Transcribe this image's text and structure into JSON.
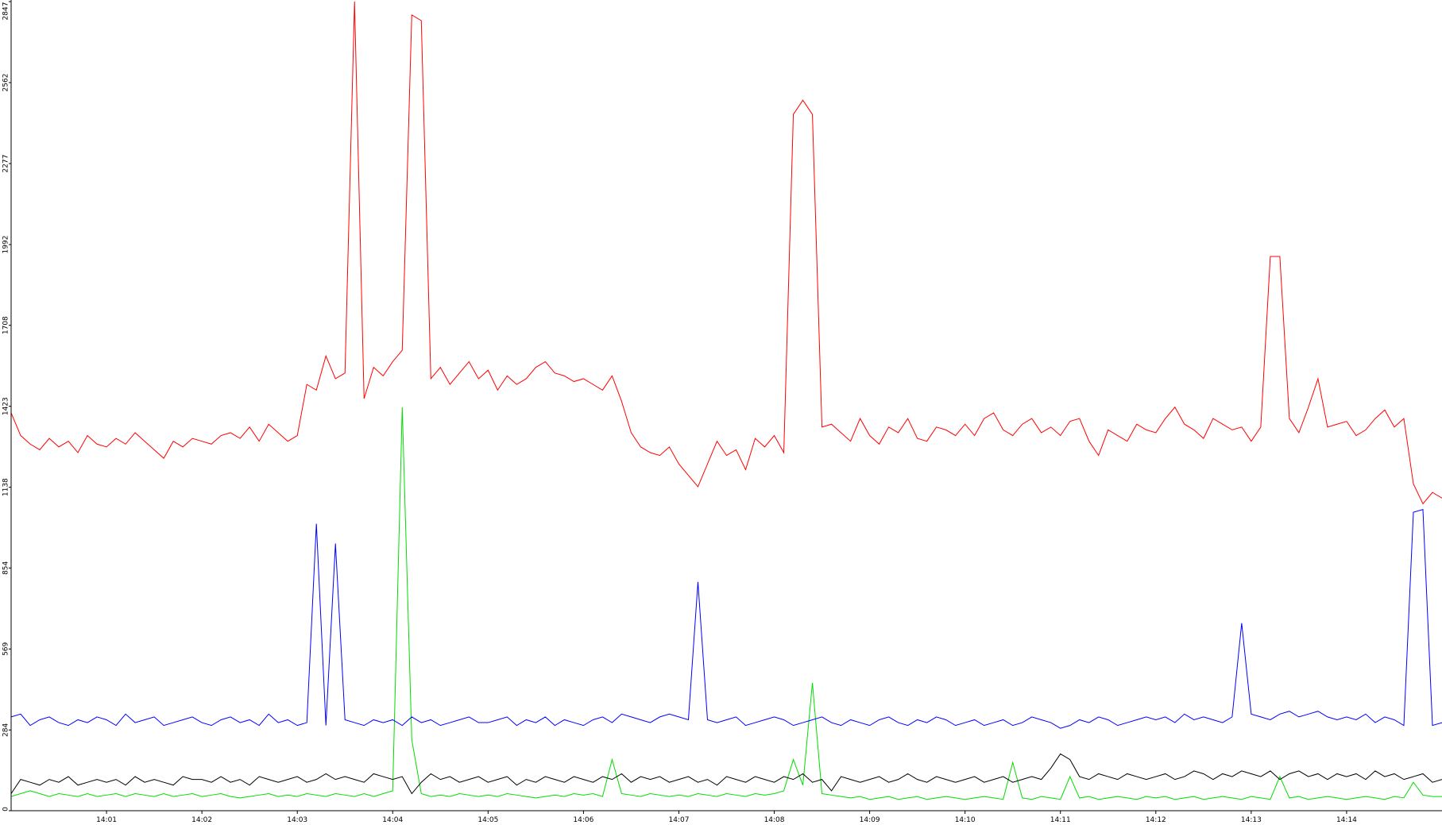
{
  "chart_data": {
    "type": "line",
    "x": [
      0,
      0.1,
      0.2,
      0.3,
      0.4,
      0.5,
      0.6,
      0.7,
      0.8,
      0.9,
      1,
      1.1,
      1.2,
      1.3,
      1.4,
      1.5,
      1.6,
      1.7,
      1.8,
      1.9,
      2,
      2.1,
      2.2,
      2.3,
      2.4,
      2.5,
      2.6,
      2.7,
      2.8,
      2.9,
      3,
      3.1,
      3.2,
      3.3,
      3.4,
      3.5,
      3.6,
      3.7,
      3.8,
      3.9,
      4,
      4.1,
      4.2,
      4.3,
      4.4,
      4.5,
      4.6,
      4.7,
      4.8,
      4.9,
      5,
      5.1,
      5.2,
      5.3,
      5.4,
      5.5,
      5.6,
      5.7,
      5.8,
      5.9,
      6,
      6.1,
      6.2,
      6.3,
      6.4,
      6.5,
      6.6,
      6.7,
      6.8,
      6.9,
      7,
      7.1,
      7.2,
      7.3,
      7.4,
      7.5,
      7.6,
      7.7,
      7.8,
      7.9,
      8,
      8.1,
      8.2,
      8.3,
      8.4,
      8.5,
      8.6,
      8.7,
      8.8,
      8.9,
      9,
      9.1,
      9.2,
      9.3,
      9.4,
      9.5,
      9.6,
      9.7,
      9.8,
      9.9,
      10,
      10.1,
      10.2,
      10.3,
      10.4,
      10.5,
      10.6,
      10.7,
      10.8,
      10.9,
      11,
      11.1,
      11.2,
      11.3,
      11.4,
      11.5,
      11.6,
      11.7,
      11.8,
      11.9,
      12,
      12.1,
      12.2,
      12.3,
      12.4,
      12.5,
      12.6,
      12.7,
      12.8,
      12.9,
      13,
      13.1,
      13.2,
      13.3,
      13.4,
      13.5,
      13.6,
      13.7,
      13.8,
      13.9,
      14,
      14.1,
      14.2,
      14.3,
      14.4,
      14.5,
      14.6,
      14.7,
      14.8,
      14.9,
      15
    ],
    "series": [
      {
        "color": "#ff0000",
        "values": [
          1400,
          1320,
          1290,
          1270,
          1310,
          1280,
          1300,
          1260,
          1320,
          1290,
          1280,
          1310,
          1290,
          1330,
          1300,
          1270,
          1240,
          1300,
          1280,
          1310,
          1300,
          1290,
          1320,
          1330,
          1310,
          1350,
          1300,
          1360,
          1330,
          1300,
          1320,
          1500,
          1480,
          1600,
          1520,
          1540,
          2847,
          1450,
          1560,
          1530,
          1580,
          1620,
          2800,
          2780,
          1520,
          1560,
          1500,
          1540,
          1580,
          1520,
          1550,
          1480,
          1530,
          1500,
          1520,
          1560,
          1580,
          1540,
          1530,
          1510,
          1520,
          1500,
          1480,
          1530,
          1440,
          1330,
          1280,
          1260,
          1250,
          1280,
          1220,
          1180,
          1140,
          1220,
          1300,
          1250,
          1270,
          1200,
          1310,
          1280,
          1320,
          1260,
          2450,
          2500,
          2450,
          1350,
          1360,
          1330,
          1300,
          1380,
          1320,
          1290,
          1350,
          1330,
          1380,
          1310,
          1300,
          1350,
          1340,
          1320,
          1360,
          1320,
          1380,
          1400,
          1340,
          1320,
          1360,
          1380,
          1330,
          1350,
          1320,
          1370,
          1380,
          1300,
          1250,
          1340,
          1320,
          1300,
          1360,
          1340,
          1330,
          1380,
          1420,
          1360,
          1340,
          1310,
          1380,
          1360,
          1340,
          1350,
          1300,
          1350,
          1950,
          1950,
          1380,
          1330,
          1420,
          1520,
          1350,
          1360,
          1370,
          1320,
          1340,
          1380,
          1410,
          1350,
          1380,
          1150,
          1080,
          1120,
          1100
        ]
      },
      {
        "color": "#0000ff",
        "values": [
          330,
          340,
          300,
          320,
          330,
          310,
          300,
          320,
          310,
          330,
          320,
          300,
          340,
          310,
          320,
          330,
          300,
          310,
          320,
          330,
          310,
          300,
          320,
          330,
          310,
          320,
          300,
          340,
          310,
          320,
          300,
          310,
          1010,
          300,
          940,
          320,
          310,
          300,
          320,
          310,
          320,
          300,
          330,
          310,
          320,
          300,
          310,
          320,
          330,
          310,
          310,
          320,
          330,
          300,
          320,
          310,
          330,
          300,
          320,
          310,
          300,
          320,
          330,
          310,
          340,
          330,
          320,
          310,
          330,
          340,
          330,
          320,
          805,
          320,
          310,
          320,
          330,
          300,
          310,
          320,
          330,
          320,
          300,
          310,
          320,
          330,
          310,
          300,
          320,
          310,
          300,
          320,
          330,
          310,
          300,
          320,
          310,
          330,
          320,
          300,
          310,
          320,
          300,
          310,
          320,
          300,
          310,
          330,
          320,
          310,
          290,
          300,
          320,
          310,
          330,
          320,
          300,
          310,
          320,
          330,
          320,
          330,
          310,
          340,
          320,
          330,
          320,
          310,
          330,
          660,
          340,
          330,
          320,
          340,
          350,
          330,
          340,
          350,
          330,
          320,
          330,
          320,
          340,
          310,
          330,
          320,
          300,
          1050,
          1060,
          300,
          310
        ]
      },
      {
        "color": "#000000",
        "values": [
          60,
          110,
          100,
          90,
          110,
          100,
          120,
          90,
          100,
          110,
          100,
          110,
          90,
          120,
          100,
          110,
          100,
          90,
          120,
          110,
          110,
          100,
          120,
          100,
          110,
          90,
          120,
          110,
          100,
          110,
          120,
          100,
          110,
          130,
          110,
          120,
          110,
          100,
          130,
          120,
          110,
          120,
          60,
          100,
          130,
          110,
          120,
          100,
          110,
          120,
          100,
          110,
          120,
          90,
          110,
          100,
          120,
          110,
          100,
          120,
          110,
          100,
          120,
          110,
          130,
          100,
          120,
          110,
          120,
          100,
          110,
          120,
          100,
          110,
          90,
          120,
          110,
          100,
          120,
          110,
          100,
          120,
          110,
          130,
          100,
          110,
          70,
          120,
          110,
          100,
          110,
          120,
          100,
          110,
          130,
          110,
          100,
          120,
          110,
          100,
          110,
          120,
          100,
          110,
          120,
          100,
          110,
          120,
          110,
          150,
          200,
          180,
          120,
          110,
          130,
          120,
          110,
          130,
          120,
          110,
          120,
          130,
          110,
          120,
          140,
          130,
          110,
          130,
          120,
          140,
          130,
          120,
          140,
          110,
          130,
          140,
          120,
          130,
          110,
          130,
          120,
          130,
          110,
          140,
          120,
          130,
          110,
          120,
          130,
          100,
          110
        ]
      },
      {
        "color": "#00dd00",
        "values": [
          50,
          60,
          70,
          60,
          50,
          60,
          55,
          50,
          60,
          50,
          55,
          60,
          50,
          60,
          55,
          50,
          60,
          50,
          55,
          60,
          50,
          55,
          60,
          50,
          45,
          50,
          55,
          60,
          50,
          55,
          50,
          60,
          55,
          50,
          60,
          55,
          50,
          60,
          50,
          60,
          70,
          1420,
          250,
          60,
          50,
          55,
          50,
          60,
          55,
          50,
          55,
          50,
          60,
          55,
          50,
          45,
          50,
          55,
          50,
          60,
          55,
          60,
          50,
          180,
          60,
          55,
          50,
          60,
          55,
          50,
          55,
          50,
          60,
          55,
          50,
          60,
          55,
          50,
          60,
          55,
          60,
          70,
          180,
          90,
          450,
          60,
          55,
          50,
          45,
          50,
          40,
          45,
          50,
          40,
          45,
          50,
          40,
          45,
          50,
          45,
          40,
          45,
          50,
          45,
          40,
          170,
          45,
          40,
          50,
          45,
          40,
          120,
          45,
          50,
          40,
          45,
          50,
          45,
          40,
          50,
          45,
          50,
          40,
          45,
          50,
          40,
          45,
          50,
          45,
          40,
          50,
          45,
          40,
          120,
          45,
          50,
          40,
          45,
          50,
          45,
          40,
          45,
          50,
          45,
          40,
          50,
          45,
          100,
          55,
          50,
          50
        ]
      }
    ],
    "xlim": [
      0,
      15
    ],
    "xticks": [
      {
        "value": 1,
        "label": "14:01"
      },
      {
        "value": 2,
        "label": "14:02"
      },
      {
        "value": 3,
        "label": "14:03"
      },
      {
        "value": 4,
        "label": "14:04"
      },
      {
        "value": 5,
        "label": "14:05"
      },
      {
        "value": 6,
        "label": "14:06"
      },
      {
        "value": 7,
        "label": "14:07"
      },
      {
        "value": 8,
        "label": "14:08"
      },
      {
        "value": 9,
        "label": "14:09"
      },
      {
        "value": 10,
        "label": "14:10"
      },
      {
        "value": 11,
        "label": "14:11"
      },
      {
        "value": 12,
        "label": "14:12"
      },
      {
        "value": 13,
        "label": "14:13"
      },
      {
        "value": 14,
        "label": "14:14"
      }
    ],
    "ylim": [
      0,
      2847
    ],
    "yticks": [
      0,
      284,
      569,
      854,
      1138,
      1423,
      1708,
      1992,
      2277,
      2562,
      2847
    ],
    "grid": false
  }
}
